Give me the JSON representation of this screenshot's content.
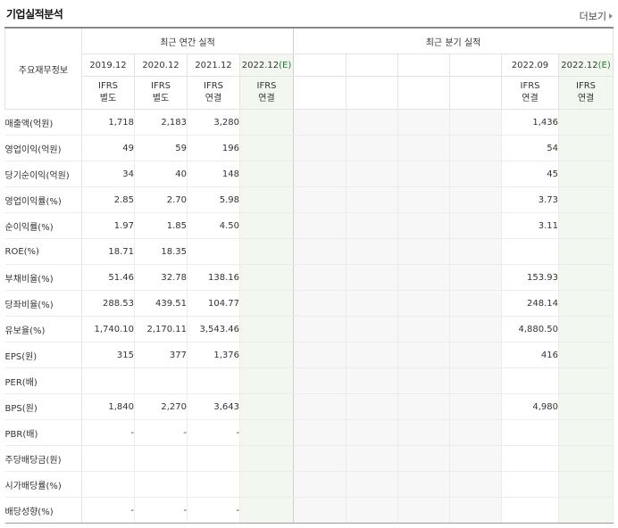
{
  "header": {
    "title": "기업실적분석",
    "more_label": "더보기"
  },
  "table": {
    "corner_label": "주요재무정보",
    "annual_label": "최근 연간 실적",
    "quarter_label": "최근 분기 실적",
    "columns": [
      {
        "date": "2019.12",
        "est": "",
        "acct1": "IFRS",
        "acct2": "별도",
        "kind": "annual"
      },
      {
        "date": "2020.12",
        "est": "",
        "acct1": "IFRS",
        "acct2": "별도",
        "kind": "annual"
      },
      {
        "date": "2021.12",
        "est": "",
        "acct1": "IFRS",
        "acct2": "연결",
        "kind": "annual"
      },
      {
        "date": "2022.12",
        "est": "(E)",
        "acct1": "IFRS",
        "acct2": "연결",
        "kind": "annual-est"
      },
      {
        "date": "",
        "est": "",
        "acct1": "",
        "acct2": "",
        "kind": "quarter"
      },
      {
        "date": "",
        "est": "",
        "acct1": "",
        "acct2": "",
        "kind": "quarter"
      },
      {
        "date": "",
        "est": "",
        "acct1": "",
        "acct2": "",
        "kind": "quarter"
      },
      {
        "date": "",
        "est": "",
        "acct1": "",
        "acct2": "",
        "kind": "quarter"
      },
      {
        "date": "2022.09",
        "est": "",
        "acct1": "IFRS",
        "acct2": "연결",
        "kind": "quarter"
      },
      {
        "date": "2022.12",
        "est": "(E)",
        "acct1": "IFRS",
        "acct2": "연결",
        "kind": "quarter-est"
      }
    ],
    "rows": [
      {
        "label": "매출액(억원)",
        "values": [
          "1,718",
          "2,183",
          "3,280",
          "",
          "",
          "",
          "",
          "",
          "1,436",
          ""
        ],
        "group_start": true
      },
      {
        "label": "영업이익(억원)",
        "values": [
          "49",
          "59",
          "196",
          "",
          "",
          "",
          "",
          "",
          "54",
          ""
        ]
      },
      {
        "label": "당기순이익(억원)",
        "values": [
          "34",
          "40",
          "148",
          "",
          "",
          "",
          "",
          "",
          "45",
          ""
        ]
      },
      {
        "label": "영업이익률(%)",
        "values": [
          "2.85",
          "2.70",
          "5.98",
          "",
          "",
          "",
          "",
          "",
          "3.73",
          ""
        ],
        "group_start": true
      },
      {
        "label": "순이익률(%)",
        "values": [
          "1.97",
          "1.85",
          "4.50",
          "",
          "",
          "",
          "",
          "",
          "3.11",
          ""
        ]
      },
      {
        "label": "ROE(%)",
        "values": [
          "18.71",
          "18.35",
          "",
          "",
          "",
          "",
          "",
          "",
          "",
          ""
        ]
      },
      {
        "label": "부채비율(%)",
        "values": [
          "51.46",
          "32.78",
          "138.16",
          "",
          "",
          "",
          "",
          "",
          "153.93",
          ""
        ],
        "group_start": true
      },
      {
        "label": "당좌비율(%)",
        "values": [
          "288.53",
          "439.51",
          "104.77",
          "",
          "",
          "",
          "",
          "",
          "248.14",
          ""
        ]
      },
      {
        "label": "유보율(%)",
        "values": [
          "1,740.10",
          "2,170.11",
          "3,543.46",
          "",
          "",
          "",
          "",
          "",
          "4,880.50",
          ""
        ]
      },
      {
        "label": "EPS(원)",
        "values": [
          "315",
          "377",
          "1,376",
          "",
          "",
          "",
          "",
          "",
          "416",
          ""
        ],
        "group_start": true
      },
      {
        "label": "PER(배)",
        "values": [
          "",
          "",
          "",
          "",
          "",
          "",
          "",
          "",
          "",
          ""
        ]
      },
      {
        "label": "BPS(원)",
        "values": [
          "1,840",
          "2,270",
          "3,643",
          "",
          "",
          "",
          "",
          "",
          "4,980",
          ""
        ]
      },
      {
        "label": "PBR(배)",
        "values": [
          "-",
          "-",
          "-",
          "",
          "",
          "",
          "",
          "",
          "",
          ""
        ]
      },
      {
        "label": "주당배당금(원)",
        "values": [
          "",
          "",
          "",
          "",
          "",
          "",
          "",
          "",
          "",
          ""
        ],
        "group_start": true
      },
      {
        "label": "시가배당률(%)",
        "values": [
          "",
          "",
          "",
          "",
          "",
          "",
          "",
          "",
          "",
          ""
        ]
      },
      {
        "label": "배당성향(%)",
        "values": [
          "-",
          "-",
          "-",
          "",
          "",
          "",
          "",
          "",
          "",
          ""
        ]
      }
    ]
  }
}
